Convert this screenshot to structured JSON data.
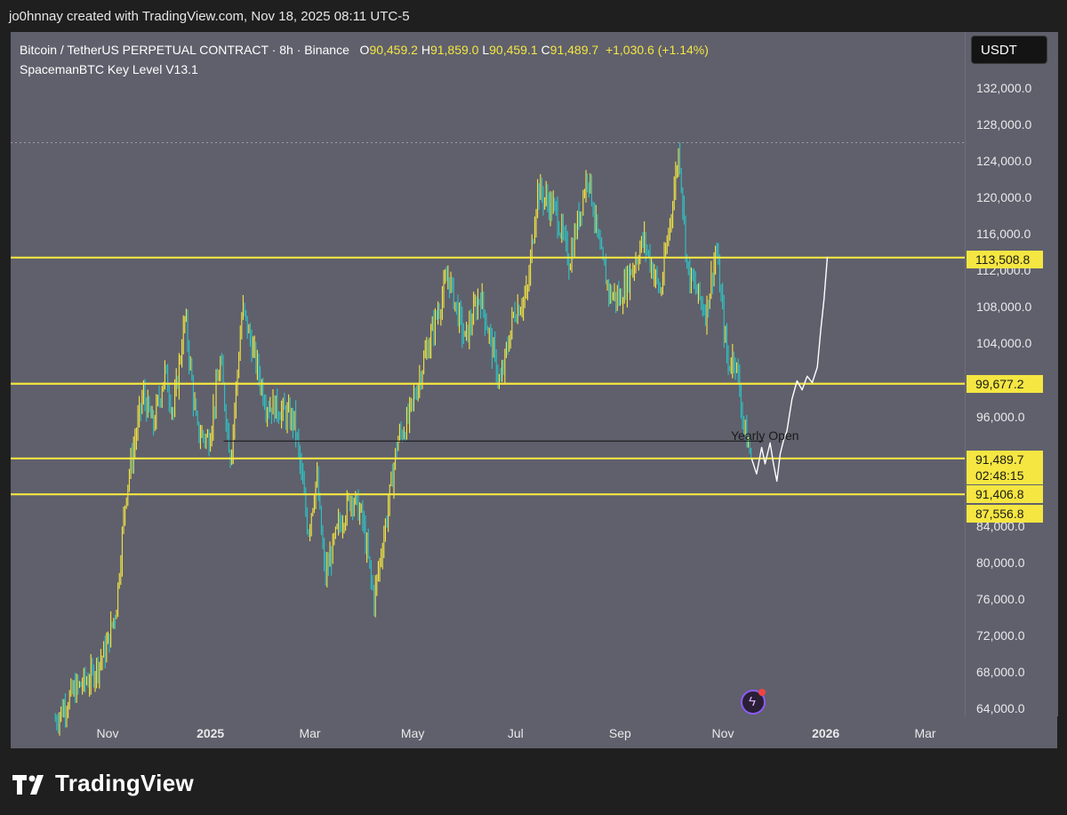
{
  "header": {
    "credit": "jo0hnnay created with TradingView.com, Nov 18, 2025 08:11 UTC-5"
  },
  "legend": {
    "symbol": "Bitcoin / TetherUS PERPETUAL CONTRACT · 8h · Binance",
    "o_label": "O",
    "o_value": "90,459.2",
    "h_label": "H",
    "h_value": "91,859.0",
    "l_label": "L",
    "l_value": "90,459.1",
    "c_label": "C",
    "c_value": "91,489.7",
    "change": "+1,030.6 (+1.14%)",
    "indicator": "SpacemanBTC Key Level V13.1"
  },
  "currency": "USDT",
  "brand": "TradingView",
  "colors": {
    "background": "#5f606c",
    "level": "#f5e642",
    "candle_up": "#f5e642",
    "candle_down": "#2ec4c4",
    "projection": "#ffffff"
  },
  "chart_data": {
    "type": "line",
    "title": "",
    "ylim": [
      62500,
      135000
    ],
    "y_ticks": [
      "132,000.0",
      "128,000.0",
      "124,000.0",
      "120,000.0",
      "116,000.0",
      "112,000.0",
      "108,000.0",
      "104,000.0",
      "96,000.0",
      "84,000.0",
      "80,000.0",
      "76,000.0",
      "72,000.0",
      "68,000.0",
      "64,000.0"
    ],
    "y_tick_values": [
      132000,
      128000,
      124000,
      120000,
      116000,
      112000,
      108000,
      104000,
      96000,
      84000,
      80000,
      76000,
      72000,
      68000,
      64000
    ],
    "x_ticks": [
      {
        "label": "Nov",
        "date": "2024-11-01",
        "bold": false
      },
      {
        "label": "2025",
        "date": "2025-01-01",
        "bold": true
      },
      {
        "label": "Mar",
        "date": "2025-03-01",
        "bold": false
      },
      {
        "label": "May",
        "date": "2025-05-01",
        "bold": false
      },
      {
        "label": "Jul",
        "date": "2025-07-01",
        "bold": false
      },
      {
        "label": "Sep",
        "date": "2025-09-01",
        "bold": false
      },
      {
        "label": "Nov",
        "date": "2025-11-01",
        "bold": false
      },
      {
        "label": "2026",
        "date": "2026-01-01",
        "bold": true
      },
      {
        "label": "Mar",
        "date": "2026-03-01",
        "bold": false
      }
    ],
    "price_path": [
      [
        "2024-10-01",
        62800
      ],
      [
        "2024-10-12",
        66000
      ],
      [
        "2024-10-22",
        67500
      ],
      [
        "2024-10-31",
        70500
      ],
      [
        "2024-11-06",
        75000
      ],
      [
        "2024-11-12",
        88000
      ],
      [
        "2024-11-22",
        98500
      ],
      [
        "2024-11-28",
        95000
      ],
      [
        "2024-12-05",
        101000
      ],
      [
        "2024-12-10",
        96500
      ],
      [
        "2024-12-17",
        107000
      ],
      [
        "2024-12-24",
        94500
      ],
      [
        "2024-12-31",
        93500
      ],
      [
        "2025-01-07",
        102000
      ],
      [
        "2025-01-13",
        91500
      ],
      [
        "2025-01-20",
        108000
      ],
      [
        "2025-01-28",
        102000
      ],
      [
        "2025-02-03",
        97500
      ],
      [
        "2025-02-10",
        97000
      ],
      [
        "2025-02-20",
        95500
      ],
      [
        "2025-02-28",
        83500
      ],
      [
        "2025-03-05",
        89500
      ],
      [
        "2025-03-10",
        78500
      ],
      [
        "2025-03-18",
        84000
      ],
      [
        "2025-03-26",
        87500
      ],
      [
        "2025-04-01",
        85000
      ],
      [
        "2025-04-08",
        76000
      ],
      [
        "2025-04-15",
        84500
      ],
      [
        "2025-04-22",
        93500
      ],
      [
        "2025-04-28",
        95500
      ],
      [
        "2025-05-08",
        102500
      ],
      [
        "2025-05-22",
        111500
      ],
      [
        "2025-06-01",
        104500
      ],
      [
        "2025-06-10",
        109500
      ],
      [
        "2025-06-22",
        99500
      ],
      [
        "2025-06-30",
        107500
      ],
      [
        "2025-07-08",
        109500
      ],
      [
        "2025-07-14",
        121000
      ],
      [
        "2025-07-25",
        118500
      ],
      [
        "2025-08-02",
        113000
      ],
      [
        "2025-08-13",
        123000
      ],
      [
        "2025-08-20",
        114000
      ],
      [
        "2025-08-26",
        109500
      ],
      [
        "2025-09-01",
        109000
      ],
      [
        "2025-09-15",
        115500
      ],
      [
        "2025-09-25",
        109500
      ],
      [
        "2025-10-01",
        118000
      ],
      [
        "2025-10-06",
        125500
      ],
      [
        "2025-10-11",
        112000
      ],
      [
        "2025-10-22",
        107500
      ],
      [
        "2025-10-28",
        114500
      ],
      [
        "2025-11-04",
        101500
      ],
      [
        "2025-11-08",
        103000
      ],
      [
        "2025-11-14",
        94500
      ],
      [
        "2025-11-18",
        91500
      ]
    ],
    "projection_path": [
      [
        "2025-11-18",
        91500
      ],
      [
        "2025-11-21",
        89800
      ],
      [
        "2025-11-24",
        92700
      ],
      [
        "2025-11-26",
        90900
      ],
      [
        "2025-11-29",
        93200
      ],
      [
        "2025-12-01",
        90900
      ],
      [
        "2025-12-03",
        89000
      ],
      [
        "2025-12-05",
        92000
      ],
      [
        "2025-12-07",
        93500
      ],
      [
        "2025-12-09",
        94500
      ],
      [
        "2025-12-12",
        98000
      ],
      [
        "2025-12-15",
        100000
      ],
      [
        "2025-12-18",
        99000
      ],
      [
        "2025-12-21",
        100500
      ],
      [
        "2025-12-24",
        99800
      ],
      [
        "2025-12-27",
        101500
      ],
      [
        "2025-12-29",
        105500
      ],
      [
        "2025-12-31",
        109000
      ],
      [
        "2026-01-02",
        113600
      ]
    ],
    "levels": [
      {
        "value": 113508.8,
        "label": "113,508.8"
      },
      {
        "value": 99677.2,
        "label": "99,677.2"
      },
      {
        "value": 91489.7,
        "label": "91,489.7",
        "countdown": "02:48:15"
      },
      {
        "value": 91406.8,
        "label": "91,406.8"
      },
      {
        "value": 87556.8,
        "label": "87,556.8"
      }
    ],
    "yearly_open": {
      "value": 93400,
      "label": "Yearly Open",
      "start": "2025-01-01",
      "end": "2025-11-25"
    },
    "dotted_high": 126100
  }
}
